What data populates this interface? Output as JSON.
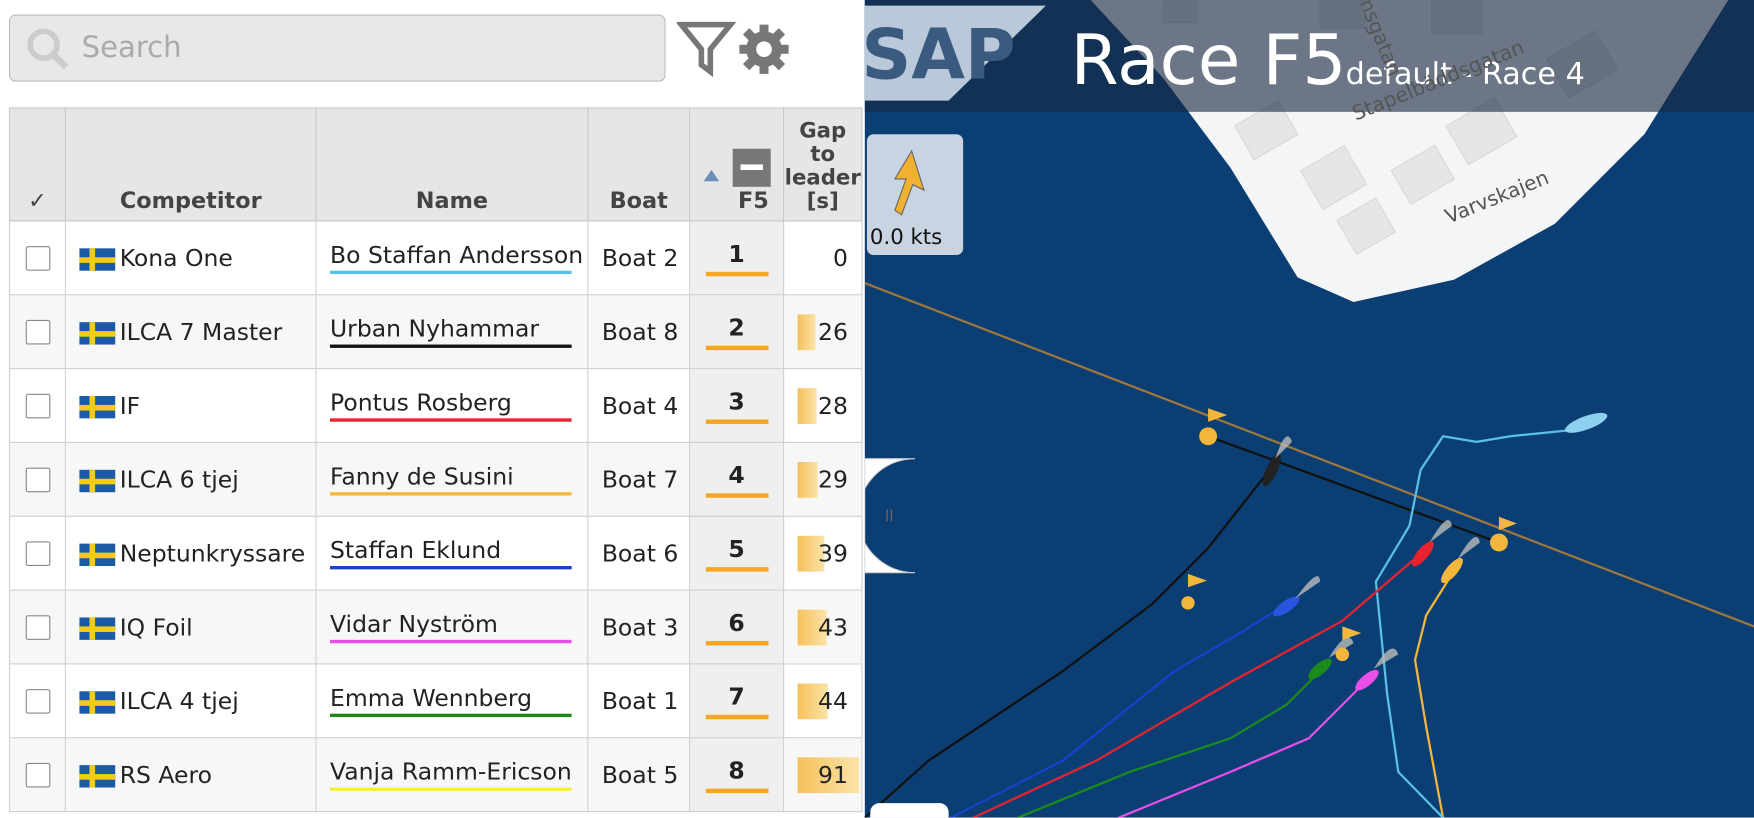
{
  "search": {
    "placeholder": "Search"
  },
  "table": {
    "headers": [
      "✓",
      "Competitor",
      "Name",
      "Boat",
      "F5",
      "Gap to leader [s]"
    ],
    "rows": [
      {
        "competitor": "Kona One",
        "name": "Bo Staffan Andersson",
        "color": "#5bc0e8",
        "boat": "Boat 2",
        "rank": 1,
        "gap": 0
      },
      {
        "competitor": "ILCA 7 Master",
        "name": "Urban Nyhammar",
        "color": "#111111",
        "boat": "Boat 8",
        "rank": 2,
        "gap": 26
      },
      {
        "competitor": "IF",
        "name": "Pontus Rosberg",
        "color": "#e8232f",
        "boat": "Boat 4",
        "rank": 3,
        "gap": 28
      },
      {
        "competitor": "ILCA 6 tjej",
        "name": "Fanny de Susini",
        "color": "#f5b73b",
        "boat": "Boat 7",
        "rank": 4,
        "gap": 29
      },
      {
        "competitor": "Neptunkryssare",
        "name": "Staffan Eklund",
        "color": "#1a3fcf",
        "boat": "Boat 6",
        "rank": 5,
        "gap": 39
      },
      {
        "competitor": "IQ Foil",
        "name": "Vidar Nyström",
        "color": "#e84ee8",
        "boat": "Boat 3",
        "rank": 6,
        "gap": 43
      },
      {
        "competitor": "ILCA 4 tjej",
        "name": "Emma Wennberg",
        "color": "#1b8a1b",
        "boat": "Boat 1",
        "rank": 7,
        "gap": 44
      },
      {
        "competitor": "RS Aero",
        "name": "Vanja Ramm-Ericson",
        "color": "#f3f03b",
        "boat": "Boat 5",
        "rank": 8,
        "gap": 91
      }
    ]
  },
  "map": {
    "logo": "SAP",
    "title": "Race F5",
    "subtitle": "default - Race 4",
    "wind": "0.0 kts",
    "streets": [
      "nsgatan",
      "Stapelbäddsgatan",
      "Varvskajen"
    ]
  }
}
